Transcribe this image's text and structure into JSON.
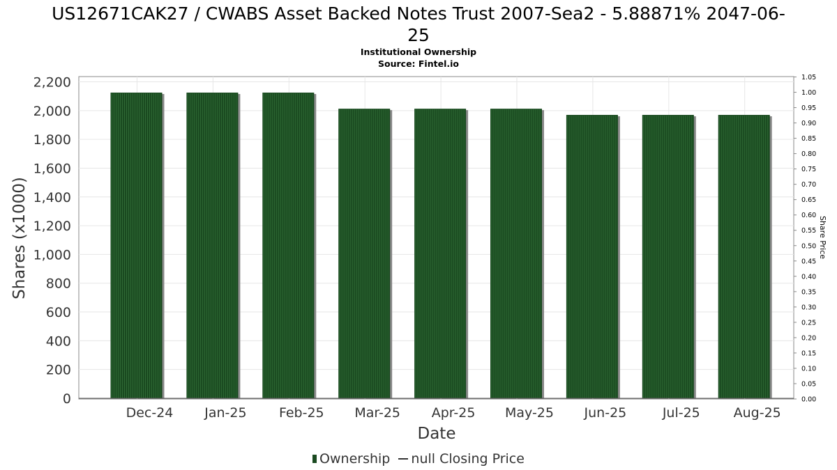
{
  "title_line1": "US12671CAK27 / CWABS Asset Backed Notes Trust 2007-Sea2 - 5.88871% 2047-06-",
  "title_line2": "25",
  "subtitle": "Institutional Ownership",
  "source": "Source: Fintel.io",
  "legend": {
    "ownership": "Ownership",
    "price": "null Closing Price"
  },
  "colors": {
    "bar": "#1a4a20",
    "bar_stripe": "#2f6a35",
    "bar_shadow": "#888888",
    "grid": "#e6e6e6",
    "axis": "#888888"
  },
  "chart_data": {
    "type": "bar",
    "categories": [
      "Dec-24",
      "Jan-25",
      "Feb-25",
      "Mar-25",
      "Apr-25",
      "May-25",
      "Jun-25",
      "Jul-25",
      "Aug-25"
    ],
    "series": [
      {
        "name": "Ownership",
        "values": [
          2125,
          2125,
          2125,
          2013,
          2013,
          2013,
          1970,
          1970,
          1970
        ]
      }
    ],
    "xlabel": "Date",
    "ylabel": "Shares (x1000)",
    "ylim": [
      0,
      2200
    ],
    "yticks": [
      0,
      200,
      400,
      600,
      800,
      1000,
      1200,
      1400,
      1600,
      1800,
      2000,
      2200
    ],
    "y2label": "Share Price",
    "y2lim": [
      0,
      1.05
    ],
    "y2ticks": [
      "0.00",
      "0.05",
      "0.10",
      "0.15",
      "0.20",
      "0.25",
      "0.30",
      "0.35",
      "0.40",
      "0.45",
      "0.50",
      "0.55",
      "0.60",
      "0.65",
      "0.70",
      "0.75",
      "0.80",
      "0.85",
      "0.90",
      "0.95",
      "1.00",
      "1.05"
    ],
    "grid": true
  }
}
